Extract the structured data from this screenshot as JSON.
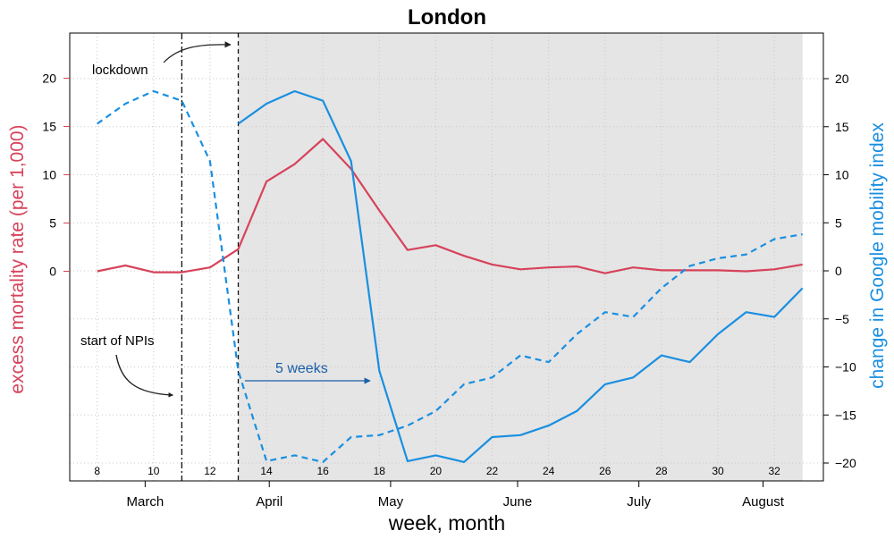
{
  "chart_data": {
    "type": "line",
    "title": "London",
    "xlabel": "week, month",
    "ylabel_left": "excess mortality rate (per 1,000)",
    "ylabel_right": "change in Google mobility index",
    "week_ticks": [
      "8",
      "10",
      "12",
      "14",
      "16",
      "18",
      "20",
      "22",
      "24",
      "26",
      "28",
      "30",
      "32"
    ],
    "month_labels": [
      {
        "label": "March",
        "week": 9.7
      },
      {
        "label": "April",
        "week": 14.1
      },
      {
        "label": "May",
        "week": 18.4
      },
      {
        "label": "June",
        "week": 22.9
      },
      {
        "label": "July",
        "week": 27.2
      },
      {
        "label": "August",
        "week": 31.6
      }
    ],
    "xlim": [
      7,
      34
    ],
    "left_ticks": [
      "0",
      "5",
      "10",
      "15",
      "20"
    ],
    "right_ticks": [
      "20",
      "15",
      "10",
      "5",
      "0",
      "−5",
      "−10",
      "−15",
      "−20"
    ],
    "grid": true,
    "shaded_period": {
      "from_week": 13.0,
      "to_week": 33.0
    },
    "series": [
      {
        "name": "excess mortality rate",
        "axis": "left",
        "color": "#d6435b",
        "style": "solid",
        "x": [
          8,
          9,
          10,
          11,
          12,
          13,
          14,
          15,
          16,
          17,
          18,
          19,
          20,
          21,
          22,
          23,
          24,
          25,
          26,
          27,
          28,
          29,
          30,
          31,
          32,
          33
        ],
        "y": [
          0.0,
          0.6,
          -0.1,
          -0.1,
          0.4,
          2.3,
          9.3,
          11.1,
          13.7,
          10.6,
          6.3,
          2.2,
          2.7,
          1.6,
          0.7,
          0.2,
          0.4,
          0.5,
          -0.2,
          0.4,
          0.1,
          0.1,
          0.1,
          0.0,
          0.2,
          0.7
        ]
      },
      {
        "name": "change in Google mobility index (before lockdown)",
        "axis": "right",
        "color": "#1a8fe0",
        "style": "dashed",
        "x": [
          8,
          9,
          10,
          11,
          12,
          13,
          14,
          15,
          16,
          17,
          18,
          19,
          20,
          21,
          22,
          23,
          24,
          25,
          26,
          27,
          28,
          29,
          30,
          31,
          32,
          33
        ],
        "y": [
          15.3,
          17.4,
          18.7,
          17.7,
          11.4,
          -10.4,
          -19.8,
          -19.2,
          -19.9,
          -17.3,
          -17.1,
          -16.1,
          -14.6,
          -11.8,
          -11.1,
          -8.8,
          -9.5,
          -6.6,
          -4.3,
          -4.8,
          -1.8,
          0.5,
          1.3,
          1.7,
          3.3,
          3.8
        ]
      },
      {
        "name": "change in Google mobility index (after lockdown)",
        "axis": "right",
        "color": "#1a8fe0",
        "style": "solid",
        "x": [
          13,
          14,
          15,
          16,
          17,
          18,
          19,
          20,
          21,
          22,
          23,
          24,
          25,
          26,
          27,
          28,
          29,
          30,
          31,
          32,
          33
        ],
        "y": [
          15.3,
          17.4,
          18.7,
          17.7,
          11.4,
          -10.4,
          -19.8,
          -19.2,
          -19.9,
          -17.3,
          -17.1,
          -16.1,
          -14.6,
          -11.8,
          -11.1,
          -8.8,
          -9.5,
          -6.6,
          -4.3,
          -4.8,
          -1.8
        ]
      }
    ],
    "vlines": [
      {
        "name": "start of NPIs",
        "week": 11.0,
        "style": "dashdot"
      },
      {
        "name": "lockdown",
        "week": 13.0,
        "style": "dashed"
      }
    ],
    "annotations": {
      "lockdown": "lockdown",
      "npis": "start of NPIs",
      "lag": "5 weeks"
    }
  }
}
